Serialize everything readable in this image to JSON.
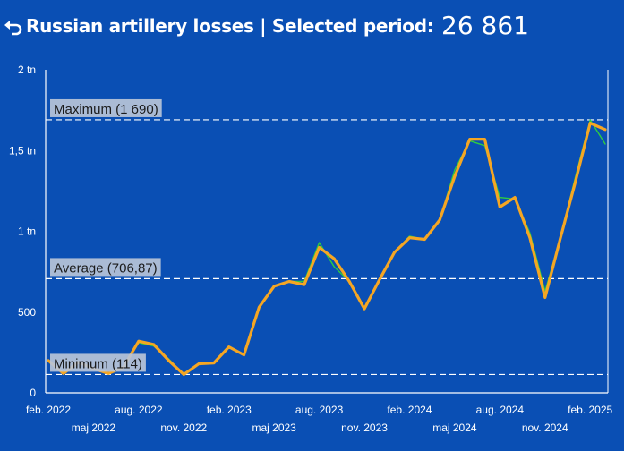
{
  "header": {
    "back_icon": "undo-arrow-icon",
    "title": "Russian artillery losses | Selected period:",
    "total": "26 861"
  },
  "colors": {
    "background": "#0a4fb4",
    "main_line": "#f5a623",
    "secondary_line": "#2ecc40",
    "reference_line": "#ffffff",
    "label_box": "#b8c4d8",
    "label_text": "#1a1a1a"
  },
  "chart_data": {
    "type": "line",
    "title": "",
    "xlabel": "",
    "ylabel": "",
    "ylim": [
      0,
      2000
    ],
    "y_ticks": [
      {
        "value": 0,
        "label": "0"
      },
      {
        "value": 500,
        "label": "500"
      },
      {
        "value": 1000,
        "label": "1 tn"
      },
      {
        "value": 1500,
        "label": "1,5 tn"
      },
      {
        "value": 2000,
        "label": "2 tn"
      }
    ],
    "x_ticks_row1": [
      {
        "index": 0,
        "label": "feb. 2022"
      },
      {
        "index": 6,
        "label": "aug. 2022"
      },
      {
        "index": 12,
        "label": "feb. 2023"
      },
      {
        "index": 18,
        "label": "aug. 2023"
      },
      {
        "index": 24,
        "label": "feb. 2024"
      },
      {
        "index": 30,
        "label": "aug. 2024"
      },
      {
        "index": 36,
        "label": "feb. 2025"
      }
    ],
    "x_ticks_row2": [
      {
        "index": 3,
        "label": "maj 2022"
      },
      {
        "index": 9,
        "label": "nov. 2022"
      },
      {
        "index": 15,
        "label": "maj 2023"
      },
      {
        "index": 21,
        "label": "nov. 2023"
      },
      {
        "index": 27,
        "label": "maj 2024"
      },
      {
        "index": 33,
        "label": "nov. 2024"
      }
    ],
    "reference_lines": [
      {
        "label": "Maximum (1 690)",
        "value": 1690
      },
      {
        "label": "Average (706,87)",
        "value": 706.87
      },
      {
        "label": "Minimum (114)",
        "value": 114
      }
    ],
    "series": [
      {
        "values": [
          200,
          120,
          190,
          150,
          120,
          160,
          320,
          300,
          200,
          114,
          180,
          185,
          285,
          235,
          530,
          660,
          690,
          670,
          900,
          830,
          690,
          520,
          700,
          870,
          960,
          950,
          1070,
          1340,
          1570,
          1570,
          1150,
          1210,
          960,
          590,
          950,
          1300,
          1670,
          1630
        ],
        "color": "#f5a623"
      },
      {
        "values": [
          200,
          120,
          190,
          150,
          120,
          160,
          310,
          290,
          210,
          114,
          180,
          185,
          285,
          235,
          530,
          660,
          690,
          690,
          930,
          780,
          690,
          520,
          700,
          870,
          970,
          950,
          1070,
          1380,
          1560,
          1530,
          1210,
          1200,
          990,
          630,
          950,
          1330,
          1690,
          1540
        ],
        "color": "#2ecc40"
      }
    ]
  }
}
